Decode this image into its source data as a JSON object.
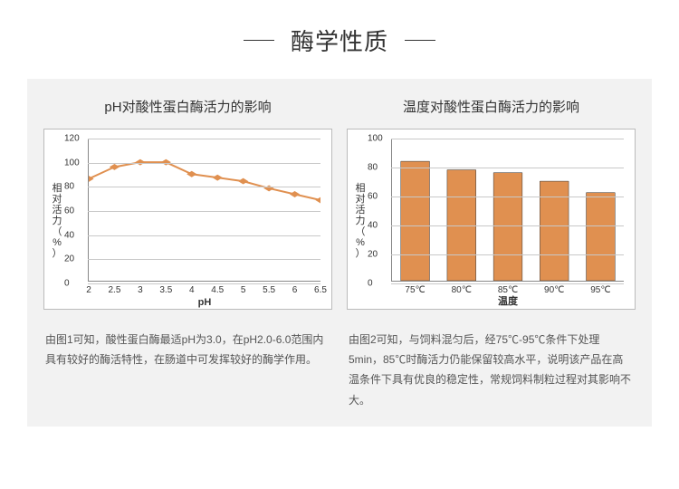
{
  "header": {
    "title": "酶学性质"
  },
  "left": {
    "title": "pH对酸性蛋白酶活力的影响",
    "chart": {
      "type": "line",
      "ylabel": "相对活力（%）",
      "xlabel": "pH",
      "ylim": [
        0,
        120
      ],
      "ytick_step": 20,
      "xlim": [
        2,
        6.5
      ],
      "xtick_step": 0.5,
      "xticks": [
        "2",
        "2.5",
        "3",
        "3.5",
        "4",
        "4.5",
        "5",
        "5.5",
        "6",
        "6.5"
      ],
      "yticks": [
        "0",
        "20",
        "40",
        "60",
        "80",
        "100",
        "120"
      ],
      "x": [
        2,
        2.5,
        3,
        3.5,
        4,
        4.5,
        5,
        5.5,
        6,
        6.5
      ],
      "y": [
        86,
        96,
        100,
        100,
        90,
        87,
        84,
        78,
        73,
        68
      ],
      "line_color": "#e09050",
      "marker_color": "#e09050",
      "marker_size": 4,
      "grid_color": "#c8c8c8",
      "background": "#ffffff"
    },
    "caption": "由图1可知，酸性蛋白酶最适pH为3.0，在pH2.0-6.0范围内具有较好的酶活特性，在肠道中可发挥较好的酶学作用。"
  },
  "right": {
    "title": "温度对酸性蛋白酶活力的影响",
    "chart": {
      "type": "bar",
      "ylabel": "相对活力（%）",
      "xlabel": "温度",
      "ylim": [
        0,
        100
      ],
      "ytick_step": 20,
      "yticks": [
        "0",
        "20",
        "40",
        "60",
        "80",
        "100"
      ],
      "categories": [
        "75℃",
        "80℃",
        "85℃",
        "90℃",
        "95℃"
      ],
      "values": [
        84,
        78,
        76,
        70,
        62
      ],
      "bar_color": "#e09050",
      "bar_border": "#333333",
      "grid_color": "#c8c8c8",
      "background": "#ffffff",
      "bar_width": 0.62
    },
    "caption": "由图2可知，与饲料混匀后，经75℃-95℃条件下处理5min，85℃时酶活力仍能保留较高水平，说明该产品在高温条件下具有优良的稳定性，常规饲料制粒过程对其影响不大。"
  }
}
